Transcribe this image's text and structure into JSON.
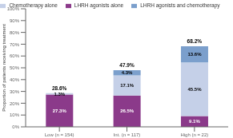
{
  "chart_data": {
    "type": "bar",
    "stacked": true,
    "data_labels": true,
    "grid": false,
    "legend": "top",
    "ylabel": "Proportion of patients receiving treatment",
    "categories": [
      "Low (n = 154)",
      "Int. (n = 117)",
      "High (n = 22)"
    ],
    "series": [
      {
        "name": "LHRH agonists alone",
        "color": "#8B3A8A",
        "values": [
          27.3,
          26.5,
          9.1
        ],
        "value_labels": [
          "27.3%",
          "26.5%",
          "9.1%"
        ]
      },
      {
        "name": "Chemotherapy alone",
        "color": "#C5D0E8",
        "values": [
          1.3,
          17.1,
          45.5
        ],
        "value_labels": [
          "1.3%",
          "17.1%",
          "45.5%"
        ]
      },
      {
        "name": "LHRH agonists and chemotherapy",
        "color": "#7B9FCC",
        "values": [
          0.0,
          4.3,
          13.6
        ],
        "value_labels": [
          null,
          "4.3%",
          "13.6%"
        ]
      }
    ],
    "totals": [
      28.6,
      47.9,
      68.2
    ],
    "total_labels": [
      "28.6%",
      "47.9%",
      "68.2%"
    ],
    "ylim": [
      0,
      100
    ],
    "yticks": [
      {
        "value": 0,
        "label": "0%"
      },
      {
        "value": 10,
        "label": "10%"
      },
      {
        "value": 20,
        "label": "20%"
      },
      {
        "value": 30,
        "label": "30%"
      },
      {
        "value": 40,
        "label": "40%"
      },
      {
        "value": 50,
        "label": "50%"
      },
      {
        "value": 60,
        "label": "60%"
      },
      {
        "value": 70,
        "label": "70%"
      },
      {
        "value": 80,
        "label": "80%"
      },
      {
        "value": 90,
        "label": "90%"
      },
      {
        "value": 100,
        "label": "100%"
      }
    ]
  }
}
